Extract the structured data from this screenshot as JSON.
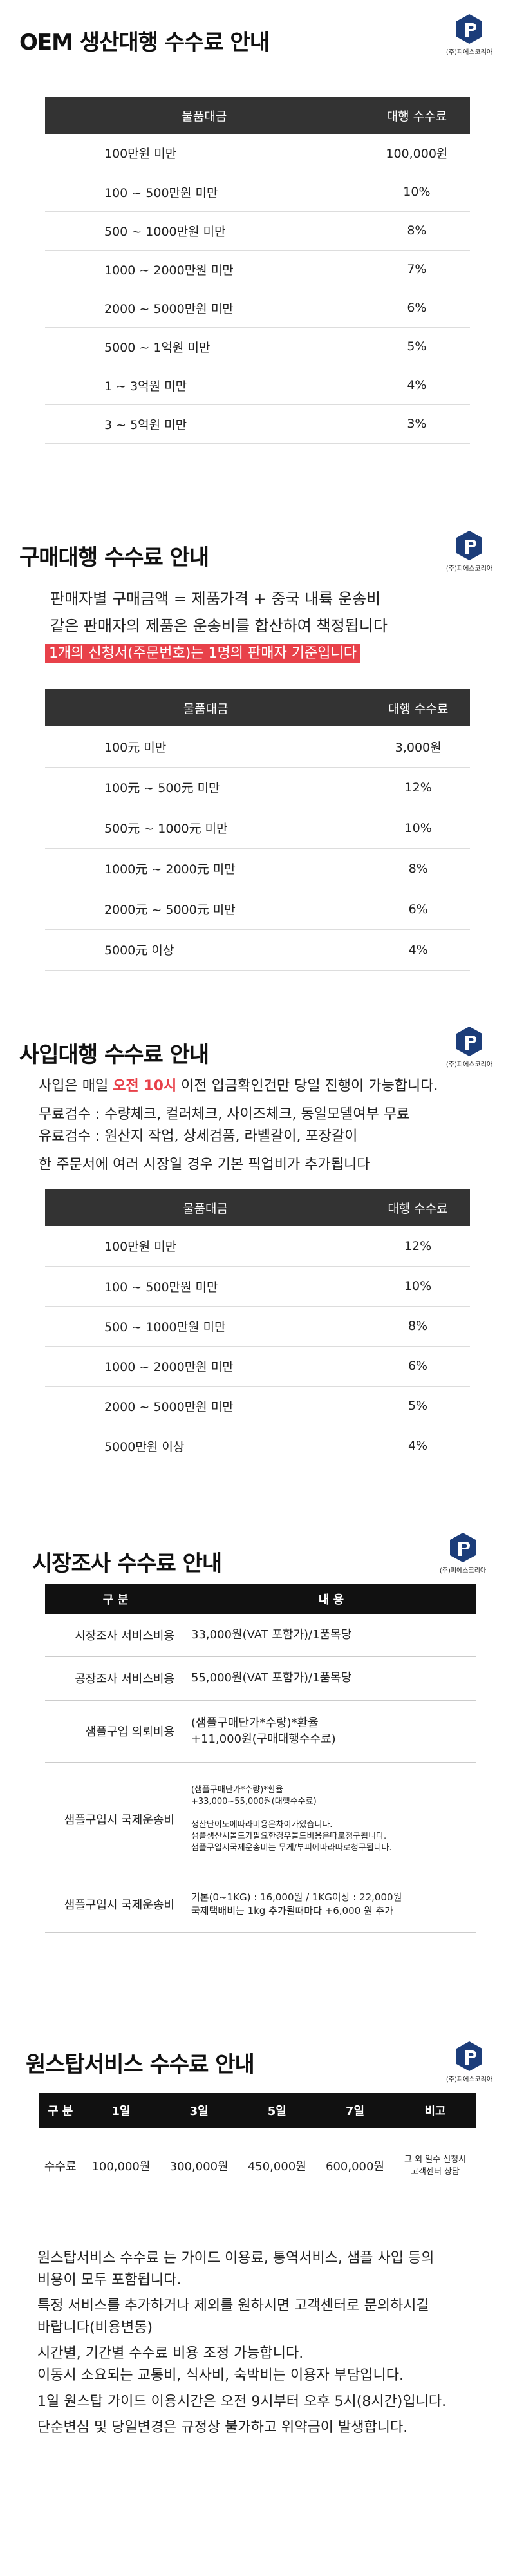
{
  "logo_text": "(주)피에스코리아",
  "oem": {
    "title": "OEM 생산대행 수수료 안내",
    "headers": [
      "물품대금",
      "대행 수수료"
    ],
    "rows": [
      [
        "100만원 미만",
        "100,000원"
      ],
      [
        "100 ~ 500만원 미만",
        "10%"
      ],
      [
        "500 ~ 1000만원 미만",
        "8%"
      ],
      [
        "1000 ~ 2000만원 미만",
        "7%"
      ],
      [
        "2000 ~ 5000만원 미만",
        "6%"
      ],
      [
        "5000 ~ 1억원 미만",
        "5%"
      ],
      [
        "1 ~ 3억원 미만",
        "4%"
      ],
      [
        "3 ~ 5억원 미만",
        "3%"
      ]
    ]
  },
  "purchase": {
    "title": "구매대행 수수료 안내",
    "line1": "판매자별 구매금액 = 제품가격 + 중국 내륙 운송비",
    "line2": "같은 판매자의 제품은 운송비를 합산하여 책정됩니다",
    "highlight": "1개의 신청서(주문번호)는 1명의 판매자 기준입니다",
    "headers": [
      "물품대금",
      "대행 수수료"
    ],
    "rows": [
      [
        "100元 미만",
        "3,000원"
      ],
      [
        "100元 ~ 500元 미만",
        "12%"
      ],
      [
        "500元 ~ 1000元 미만",
        "10%"
      ],
      [
        "1000元 ~ 2000元 미만",
        "8%"
      ],
      [
        "2000元 ~ 5000元 미만",
        "6%"
      ],
      [
        "5000元 이상",
        "4%"
      ]
    ]
  },
  "buying": {
    "title": "사입대행 수수료 안내",
    "line1_pre": "사입은 매일 ",
    "line1_red": "오전 10시",
    "line1_post": " 이전 입금확인건만 당일 진행이 가능합니다.",
    "line2": "무료검수 : 수량체크, 컬러체크, 사이즈체크, 동일모델여부 무료",
    "line3": "유료검수 : 원산지 작업, 상세검품, 라벨갈이, 포장갈이",
    "line4": "한 주문서에 여러 시장일 경우 기본 픽업비가 추가됩니다",
    "headers": [
      "물품대금",
      "대행 수수료"
    ],
    "rows": [
      [
        "100만원 미만",
        "12%"
      ],
      [
        "100 ~ 500만원 미만",
        "10%"
      ],
      [
        "500 ~ 1000만원 미만",
        "8%"
      ],
      [
        "1000 ~ 2000만원 미만",
        "6%"
      ],
      [
        "2000 ~ 5000만원 미만",
        "5%"
      ],
      [
        "5000만원 이상",
        "4%"
      ]
    ]
  },
  "market": {
    "title": "시장조사 수수료 안내",
    "headers": [
      "구 분",
      "내    용"
    ],
    "rows": [
      {
        "label": "시장조사 서비스비용",
        "value": "33,000원(VAT 포함가)/1품목당"
      },
      {
        "label": "공장조사 서비스비용",
        "value": "55,000원(VAT 포함가)/1품목당"
      },
      {
        "label": "샘플구입 의뢰비용",
        "value": "(샘플구매단가*수량)*환율",
        "value2": "+11,000원(구매대행수수료)"
      },
      {
        "label": "샘플구입시 국제운송비",
        "s1": "(샘플구매단가*수량)*환율",
        "s2": "+33,000~55,000원(대행수수료)",
        "s3": "생산난이도에따라비용은차이가있습니다.",
        "s4": "샘플생산시몰드가필요한경우몰드비용은따로청구됩니다.",
        "s5": "샘플구입시국제운송비는 무게/부피에따라따로청구됩니다."
      },
      {
        "label": "샘플구입시 국제운송비",
        "v1": "기본(0~1KG) : 16,000원 / 1KG이상 : 22,000원",
        "v2": "국제택배비는 1kg 추가될때마다 +6,000 원 추가"
      }
    ]
  },
  "onestop": {
    "title": "원스탑서비스 수수료 안내",
    "headers": [
      "구 분",
      "1일",
      "3일",
      "5일",
      "7일",
      "비고"
    ],
    "row": [
      "수수료",
      "100,000원",
      "300,000원",
      "450,000원",
      "600,000원"
    ],
    "note1": "그 외 일수 신청시",
    "note2": "고객센터 상담",
    "p1": "원스탑서비스 수수료 는 가이드 이용료, 통역서비스, 샘플 사입 등의",
    "p1b": "비용이 모두 포함됩니다.",
    "p2": "특정 서비스를 추가하거나 제외를 원하시면 고객센터로 문의하시길",
    "p2b": "바랍니다(비용변동)",
    "p3": "시간별, 기간별 수수료 비용 조정 가능합니다.",
    "p4": "이동시 소요되는 교통비, 식사비, 숙박비는 이용자 부담입니다.",
    "p5": "1일 원스탑 가이드 이용시간은 오전 9시부터 오후 5시(8시간)입니다.",
    "p6": "단순변심 및 당일변경은 규정상 불가하고 위약금이 발생합니다."
  }
}
